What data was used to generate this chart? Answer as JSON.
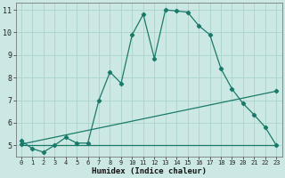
{
  "xlabel": "Humidex (Indice chaleur)",
  "background_color": "#cce8e4",
  "grid_color": "#aad4cc",
  "line_color": "#1a7a6a",
  "xlim": [
    -0.5,
    23.5
  ],
  "ylim": [
    4.5,
    11.3
  ],
  "xticks": [
    0,
    1,
    2,
    3,
    4,
    5,
    6,
    7,
    8,
    9,
    10,
    11,
    12,
    13,
    14,
    15,
    16,
    17,
    18,
    19,
    20,
    21,
    22,
    23
  ],
  "yticks": [
    5,
    6,
    7,
    8,
    9,
    10,
    11
  ],
  "line1_x": [
    0,
    1,
    2,
    3,
    4,
    5,
    6,
    7,
    8,
    9,
    10,
    11,
    12,
    13,
    14,
    15,
    16,
    17,
    18,
    19,
    20,
    21,
    22,
    23
  ],
  "line1_y": [
    5.2,
    4.85,
    4.7,
    5.0,
    5.35,
    5.1,
    5.1,
    7.0,
    8.25,
    7.75,
    9.9,
    10.8,
    8.85,
    11.0,
    10.95,
    10.9,
    10.3,
    9.9,
    8.4,
    7.5,
    6.85,
    6.35,
    5.8,
    5.0
  ],
  "line2_x": [
    0,
    23
  ],
  "line2_y": [
    5.05,
    7.4
  ],
  "line3_x": [
    0,
    23
  ],
  "line3_y": [
    5.0,
    5.0
  ],
  "figwidth": 3.2,
  "figheight": 2.0,
  "dpi": 100
}
